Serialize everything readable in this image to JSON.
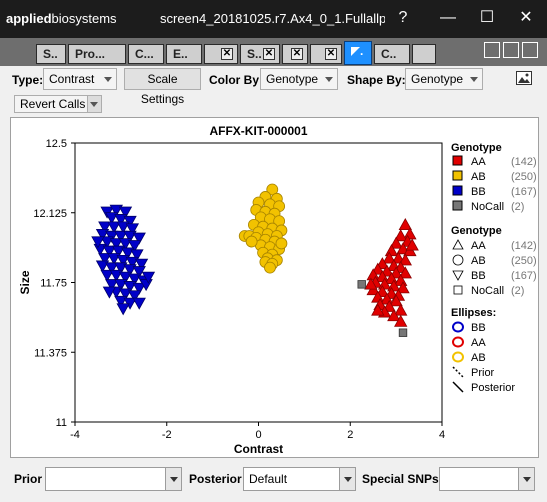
{
  "titlebar": {
    "brand_bold": "applied",
    "brand_rest": "biosystems",
    "title": "screen4_20181025.r7.Ax4_0_1.Fullallp...",
    "help_icon": "?",
    "minimize_icon": "—",
    "maximize_icon": "☐",
    "close_icon": "✕"
  },
  "tabs": [
    {
      "label": "S..",
      "closable": false
    },
    {
      "label": "Pro...",
      "closable": false
    },
    {
      "label": "C...",
      "closable": false
    },
    {
      "label": "E..",
      "closable": false
    },
    {
      "label": "",
      "closable": true
    },
    {
      "label": "S..",
      "closable": true
    },
    {
      "label": "",
      "closable": true
    },
    {
      "label": "",
      "closable": true
    },
    {
      "label": ".",
      "closable": false,
      "active": true
    },
    {
      "label": "C..",
      "closable": false
    },
    {
      "label": "",
      "closable": false
    }
  ],
  "toolbar": {
    "type_label": "Type:",
    "type_value": "Contrast",
    "scale_settings": "Scale Settings",
    "color_by_label": "Color By:",
    "color_by_value": "Genotype",
    "shape_by_label": "Shape By:",
    "shape_by_value": "Genotype",
    "revert_calls": "Revert Calls"
  },
  "bottom": {
    "prior_label": "Prior",
    "prior_value": "",
    "posterior_label": "Posterior",
    "posterior_value": "Default",
    "special_snps_label": "Special SNPs:",
    "special_snps_value": ""
  },
  "legend": {
    "color_title": "Genotype",
    "color_items": [
      {
        "label": "AA",
        "count": "(142)",
        "color": "#e00000"
      },
      {
        "label": "AB",
        "count": "(250)",
        "color": "#f2c200"
      },
      {
        "label": "BB",
        "count": "(167)",
        "color": "#0000c8"
      },
      {
        "label": "NoCall",
        "count": "(2)",
        "color": "#777777"
      }
    ],
    "shape_title": "Genotype",
    "shape_items": [
      {
        "label": "AA",
        "count": "(142)",
        "shape": "triangle-up"
      },
      {
        "label": "AB",
        "count": "(250)",
        "shape": "circle"
      },
      {
        "label": "BB",
        "count": "(167)",
        "shape": "triangle-down"
      },
      {
        "label": "NoCall",
        "count": "(2)",
        "shape": "square"
      }
    ],
    "ellipses_title": "Ellipses:",
    "ellipse_items": [
      {
        "label": "BB",
        "color": "#0000c8"
      },
      {
        "label": "AA",
        "color": "#e00000"
      },
      {
        "label": "AB",
        "color": "#f2c200"
      }
    ],
    "line_items": [
      {
        "label": "Prior",
        "style": "dashed"
      },
      {
        "label": "Posterior",
        "style": "solid"
      }
    ]
  },
  "chart_data": {
    "type": "scatter",
    "title": "AFFX-KIT-000001",
    "xlabel": "Contrast",
    "ylabel": "Size",
    "xlim": [
      -4,
      4
    ],
    "ylim": [
      11,
      12.5
    ],
    "xticks": [
      "-4",
      "-2",
      "0",
      "2",
      "4"
    ],
    "yticks": [
      "11",
      "11.375",
      "11.75",
      "12.125",
      "12.5"
    ],
    "series": [
      {
        "name": "BB",
        "color": "#0000c8",
        "shape": "triangle-down",
        "points": [
          [
            -3.3,
            12.13
          ],
          [
            -3.1,
            12.14
          ],
          [
            -2.9,
            12.13
          ],
          [
            -3.2,
            12.1
          ],
          [
            -3.0,
            12.09
          ],
          [
            -2.8,
            12.08
          ],
          [
            -3.35,
            12.05
          ],
          [
            -3.15,
            12.05
          ],
          [
            -2.95,
            12.05
          ],
          [
            -2.75,
            12.04
          ],
          [
            -3.4,
            12.01
          ],
          [
            -3.2,
            12.0
          ],
          [
            -3.0,
            12.0
          ],
          [
            -2.8,
            12.0
          ],
          [
            -2.6,
            11.99
          ],
          [
            -3.3,
            11.97
          ],
          [
            -3.1,
            11.96
          ],
          [
            -2.9,
            11.96
          ],
          [
            -2.7,
            11.95
          ],
          [
            -3.45,
            11.93
          ],
          [
            -3.25,
            11.92
          ],
          [
            -3.05,
            11.92
          ],
          [
            -2.85,
            11.91
          ],
          [
            -2.65,
            11.9
          ],
          [
            -3.35,
            11.88
          ],
          [
            -3.15,
            11.88
          ],
          [
            -2.95,
            11.87
          ],
          [
            -2.75,
            11.86
          ],
          [
            -2.55,
            11.85
          ],
          [
            -3.4,
            11.84
          ],
          [
            -3.2,
            11.83
          ],
          [
            -3.0,
            11.83
          ],
          [
            -2.8,
            11.82
          ],
          [
            -2.6,
            11.81
          ],
          [
            -3.3,
            11.79
          ],
          [
            -3.1,
            11.79
          ],
          [
            -2.9,
            11.78
          ],
          [
            -2.7,
            11.77
          ],
          [
            -2.5,
            11.76
          ],
          [
            -3.2,
            11.74
          ],
          [
            -3.0,
            11.74
          ],
          [
            -2.8,
            11.73
          ],
          [
            -2.6,
            11.72
          ],
          [
            -3.1,
            11.7
          ],
          [
            -2.9,
            11.69
          ],
          [
            -2.7,
            11.68
          ],
          [
            -2.45,
            11.74
          ],
          [
            -3.0,
            11.65
          ],
          [
            -2.8,
            11.64
          ],
          [
            -2.95,
            11.61
          ],
          [
            -2.6,
            11.64
          ],
          [
            -3.25,
            11.7
          ],
          [
            -2.4,
            11.78
          ],
          [
            -3.5,
            11.97
          ]
        ]
      },
      {
        "name": "AB",
        "color": "#f2c200",
        "shape": "circle",
        "points": [
          [
            0.3,
            12.25
          ],
          [
            0.15,
            12.21
          ],
          [
            0.4,
            12.2
          ],
          [
            0.0,
            12.18
          ],
          [
            0.25,
            12.17
          ],
          [
            0.45,
            12.16
          ],
          [
            -0.05,
            12.14
          ],
          [
            0.15,
            12.13
          ],
          [
            0.35,
            12.12
          ],
          [
            0.05,
            12.1
          ],
          [
            0.25,
            12.09
          ],
          [
            0.45,
            12.08
          ],
          [
            -0.1,
            12.06
          ],
          [
            0.1,
            12.05
          ],
          [
            0.3,
            12.04
          ],
          [
            0.5,
            12.03
          ],
          [
            0.0,
            12.02
          ],
          [
            0.2,
            12.01
          ],
          [
            0.4,
            12.0
          ],
          [
            -0.3,
            12.0
          ],
          [
            -0.2,
            12.0
          ],
          [
            -0.05,
            11.99
          ],
          [
            0.15,
            11.98
          ],
          [
            0.35,
            11.97
          ],
          [
            0.05,
            11.95
          ],
          [
            0.25,
            11.94
          ],
          [
            0.45,
            11.93
          ],
          [
            0.1,
            11.91
          ],
          [
            0.3,
            11.9
          ],
          [
            0.2,
            11.88
          ],
          [
            0.4,
            11.87
          ],
          [
            0.15,
            11.86
          ],
          [
            0.3,
            11.85
          ],
          [
            0.25,
            11.83
          ],
          [
            -0.15,
            11.97
          ],
          [
            0.5,
            11.96
          ]
        ]
      },
      {
        "name": "AA",
        "color": "#e00000",
        "shape": "triangle-up",
        "points": [
          [
            3.2,
            12.06
          ],
          [
            3.3,
            12.01
          ],
          [
            3.1,
            12.0
          ],
          [
            3.25,
            11.97
          ],
          [
            3.0,
            11.96
          ],
          [
            3.15,
            11.93
          ],
          [
            2.9,
            11.92
          ],
          [
            3.3,
            11.92
          ],
          [
            2.85,
            11.88
          ],
          [
            3.05,
            11.88
          ],
          [
            3.2,
            11.87
          ],
          [
            2.7,
            11.85
          ],
          [
            2.95,
            11.84
          ],
          [
            3.1,
            11.83
          ],
          [
            2.6,
            11.82
          ],
          [
            2.8,
            11.81
          ],
          [
            3.0,
            11.8
          ],
          [
            3.2,
            11.8
          ],
          [
            2.5,
            11.79
          ],
          [
            2.7,
            11.78
          ],
          [
            2.9,
            11.77
          ],
          [
            3.1,
            11.76
          ],
          [
            2.55,
            11.75
          ],
          [
            2.75,
            11.74
          ],
          [
            2.95,
            11.73
          ],
          [
            3.15,
            11.72
          ],
          [
            2.5,
            11.71
          ],
          [
            2.7,
            11.7
          ],
          [
            2.9,
            11.69
          ],
          [
            3.05,
            11.68
          ],
          [
            2.6,
            11.67
          ],
          [
            2.8,
            11.66
          ],
          [
            3.0,
            11.65
          ],
          [
            2.65,
            11.63
          ],
          [
            2.85,
            11.62
          ],
          [
            3.1,
            11.6
          ],
          [
            2.75,
            11.59
          ],
          [
            2.95,
            11.57
          ],
          [
            3.1,
            11.54
          ],
          [
            2.45,
            11.74
          ],
          [
            3.35,
            11.95
          ],
          [
            2.6,
            11.6
          ]
        ]
      },
      {
        "name": "NoCall",
        "color": "#777777",
        "shape": "square",
        "points": [
          [
            2.25,
            11.74
          ],
          [
            3.15,
            11.48
          ]
        ]
      }
    ]
  }
}
